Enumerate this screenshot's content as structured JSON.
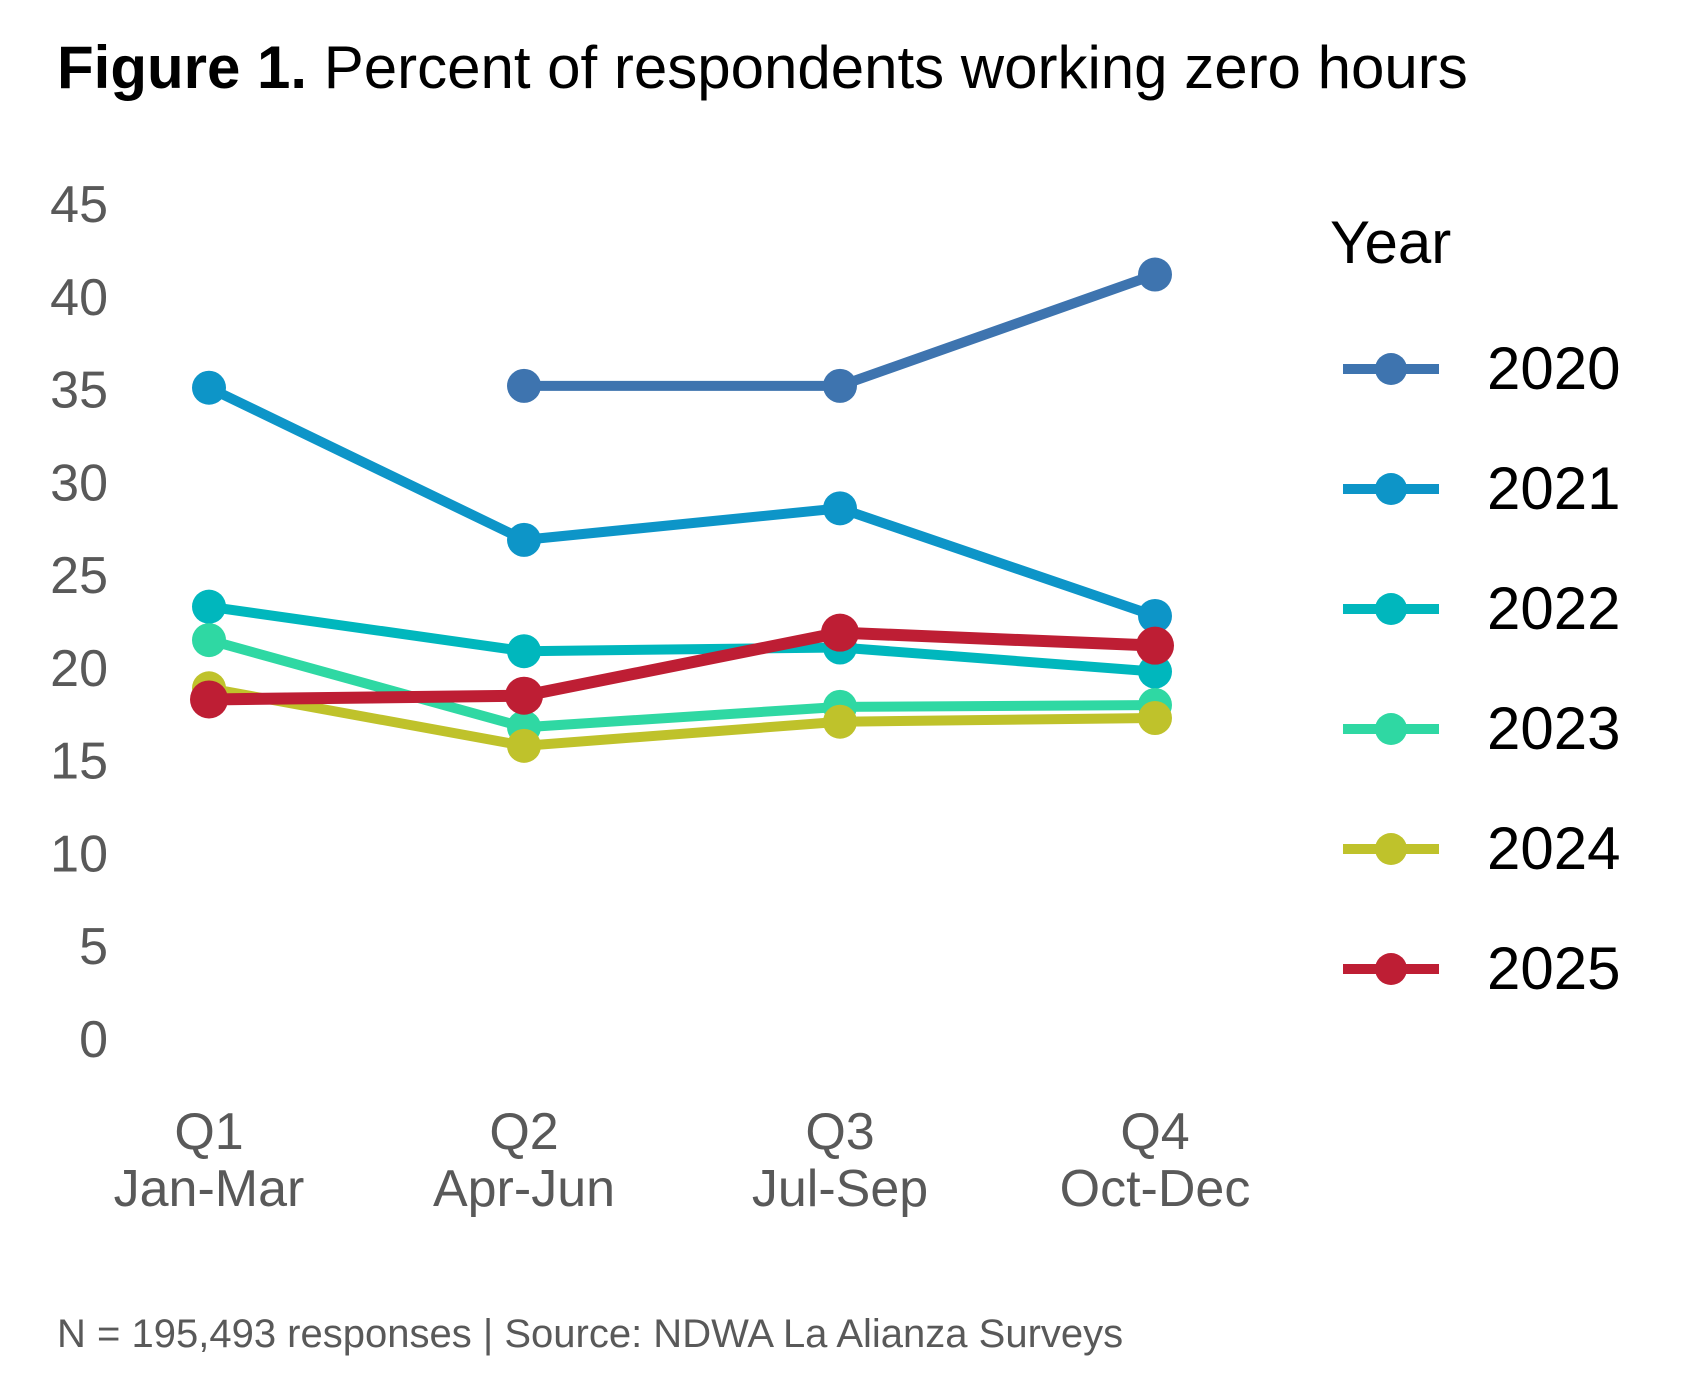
{
  "title": {
    "prefix": "Figure 1.",
    "rest": " Percent of respondents working zero hours"
  },
  "legend": {
    "title": "Year"
  },
  "footer": "N = 195,493 responses | Source: NDWA La Alianza Surveys",
  "colors": {
    "background": "#FFFFFF",
    "axis_text": "#595959",
    "title_text": "#000000"
  },
  "chart_data": {
    "type": "line",
    "title": "Figure 1. Percent of respondents working zero hours",
    "xlabel": "",
    "ylabel": "",
    "ylim": [
      0,
      45
    ],
    "yticks": [
      45,
      40,
      35,
      30,
      25,
      20,
      15,
      10,
      5,
      0
    ],
    "grid": false,
    "legend_title": "Year",
    "legend_position": "right",
    "categories": [
      "Q1",
      "Q2",
      "Q3",
      "Q4"
    ],
    "x_tick_sublabels": [
      "Jan-Mar",
      "Apr-Jun",
      "Jul-Sep",
      "Oct-Dec"
    ],
    "series": [
      {
        "name": "2020",
        "color": "#3E74AF",
        "values": [
          null,
          35.2,
          35.2,
          41.2
        ]
      },
      {
        "name": "2021",
        "color": "#0D95C8",
        "values": [
          35.1,
          26.9,
          28.6,
          22.8
        ]
      },
      {
        "name": "2022",
        "color": "#00B7BD",
        "values": [
          23.3,
          20.9,
          21.1,
          19.8
        ]
      },
      {
        "name": "2023",
        "color": "#2FD8A3",
        "values": [
          21.5,
          16.8,
          17.9,
          18.0
        ]
      },
      {
        "name": "2024",
        "color": "#BFC22B",
        "values": [
          18.9,
          15.8,
          17.1,
          17.3
        ]
      },
      {
        "name": "2025",
        "color": "#BE1E34",
        "values": [
          18.3,
          18.5,
          21.9,
          21.2
        ]
      }
    ],
    "caption": "N = 195,493 responses | Source: NDWA La Alianza Surveys"
  }
}
